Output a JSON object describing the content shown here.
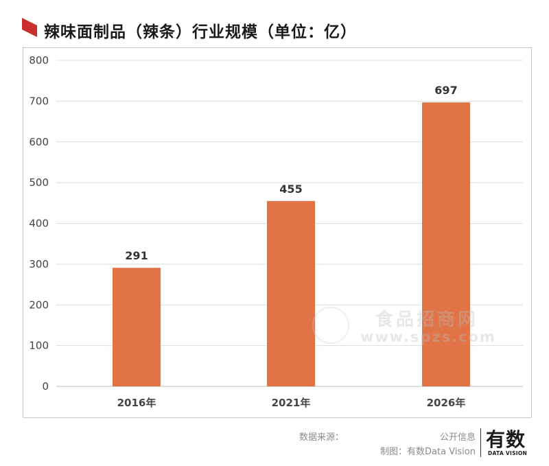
{
  "title": "辣味面制品（辣条）行业规模（单位：亿）",
  "colors": {
    "bar": "#e07447",
    "accent": "#c9302c",
    "grid": "#dcdcdc",
    "text": "#333333"
  },
  "chart_data": {
    "type": "bar",
    "title": "辣味面制品（辣条）行业规模（单位：亿）",
    "categories": [
      "2016年",
      "2021年",
      "2026年"
    ],
    "values": [
      291,
      455,
      697
    ],
    "yticks": [
      0,
      100,
      200,
      300,
      400,
      500,
      600,
      700,
      800
    ],
    "ylim": [
      0,
      800
    ],
    "grid": true,
    "legend": false
  },
  "watermark": {
    "line1": "食品招商网",
    "line2": "www.spzs.com"
  },
  "footer": {
    "source_label": "数据来源：",
    "source_value": "公开信息",
    "maker": "制图：有数Data Vision",
    "brand_cn": "有数",
    "brand_en": "DATA VISION"
  }
}
